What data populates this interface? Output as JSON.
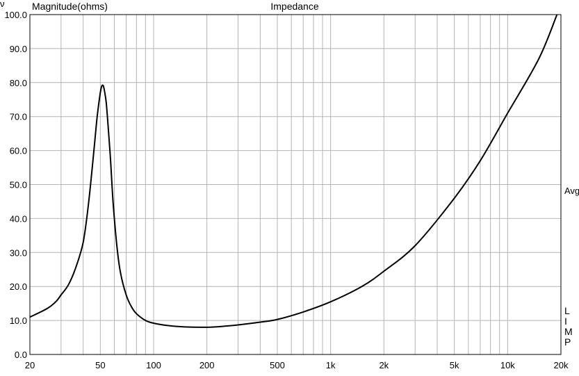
{
  "chart_data": {
    "type": "line",
    "title": "Impedance",
    "ylabel": "Magnitude(ohms)",
    "xlabel": "",
    "x_scale": "log",
    "xlim": [
      20,
      20000
    ],
    "ylim": [
      0,
      100
    ],
    "grid": true,
    "y_ticks": [
      "0.0",
      "10.0",
      "20.0",
      "30.0",
      "40.0",
      "50.0",
      "60.0",
      "70.0",
      "80.0",
      "90.0",
      "100.0"
    ],
    "x_tick_labels": [
      {
        "value": 20,
        "label": "20"
      },
      {
        "value": 50,
        "label": "50"
      },
      {
        "value": 100,
        "label": "100"
      },
      {
        "value": 200,
        "label": "200"
      },
      {
        "value": 500,
        "label": "500"
      },
      {
        "value": 1000,
        "label": "1k"
      },
      {
        "value": 2000,
        "label": "2k"
      },
      {
        "value": 5000,
        "label": "5k"
      },
      {
        "value": 10000,
        "label": "10k"
      },
      {
        "value": 20000,
        "label": "20k"
      }
    ],
    "series": [
      {
        "color": "#000000",
        "x": [
          20,
          25,
          28,
          30,
          33,
          36,
          40,
          43,
          46,
          48,
          50,
          51,
          52,
          53,
          54,
          55,
          57,
          59,
          62,
          65,
          70,
          75,
          80,
          90,
          100,
          120,
          150,
          200,
          250,
          300,
          400,
          500,
          700,
          1000,
          1500,
          2000,
          3000,
          5000,
          7000,
          10000,
          15000,
          19000
        ],
        "y": [
          11,
          13.5,
          15.5,
          17.5,
          20.5,
          25,
          33,
          45,
          60,
          70,
          77,
          79,
          79,
          77,
          74,
          69,
          58,
          45,
          32,
          24,
          17.5,
          14,
          12,
          10,
          9.2,
          8.5,
          8.1,
          8.0,
          8.3,
          8.7,
          9.5,
          10.3,
          12.5,
          15.5,
          20,
          24.5,
          32,
          46,
          57,
          71,
          87,
          100
        ]
      }
    ],
    "right_labels": {
      "avg": "Avg",
      "lim": [
        "L",
        "I",
        "M",
        "P"
      ]
    },
    "corner_mark": "ν"
  }
}
